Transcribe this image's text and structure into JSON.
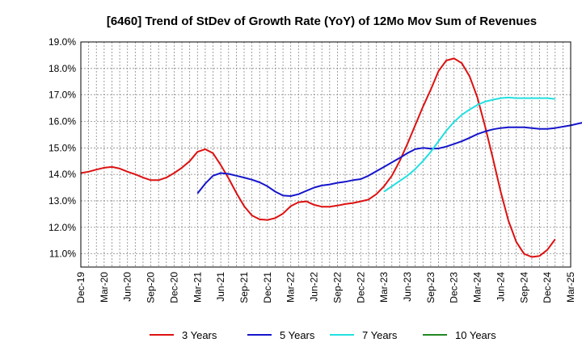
{
  "chart_data": {
    "type": "line",
    "title": "[6460]  Trend of StDev of Growth Rate (YoY) of 12Mo Mov Sum of Revenues",
    "xlabel": "",
    "ylabel": "",
    "ylim": [
      10.5,
      19.0
    ],
    "yticks": [
      11.0,
      12.0,
      13.0,
      14.0,
      15.0,
      16.0,
      17.0,
      18.0,
      19.0
    ],
    "ytick_labels": [
      "11.0%",
      "12.0%",
      "13.0%",
      "14.0%",
      "15.0%",
      "16.0%",
      "17.0%",
      "18.0%",
      "19.0%"
    ],
    "xlim_months": [
      0,
      63
    ],
    "xtick_labels": [
      "Dec-19",
      "Mar-20",
      "Jun-20",
      "Sep-20",
      "Dec-20",
      "Mar-21",
      "Jun-21",
      "Sep-21",
      "Dec-21",
      "Mar-22",
      "Jun-22",
      "Sep-22",
      "Dec-22",
      "Mar-23",
      "Jun-23",
      "Sep-23",
      "Dec-23",
      "Mar-24",
      "Jun-24",
      "Sep-24",
      "Dec-24",
      "Mar-25"
    ],
    "grid": true,
    "legend_position": "bottom",
    "series": [
      {
        "name": "3 Years",
        "color": "#dd1111",
        "start_month": 0,
        "values": [
          14.05,
          14.1,
          14.18,
          14.25,
          14.28,
          14.22,
          14.1,
          14.0,
          13.88,
          13.78,
          13.78,
          13.88,
          14.05,
          14.25,
          14.5,
          14.85,
          14.95,
          14.8,
          14.35,
          13.85,
          13.3,
          12.8,
          12.45,
          12.3,
          12.28,
          12.35,
          12.52,
          12.8,
          12.95,
          12.98,
          12.85,
          12.78,
          12.78,
          12.82,
          12.88,
          12.92,
          12.98,
          13.05,
          13.25,
          13.55,
          13.95,
          14.5,
          15.15,
          15.85,
          16.55,
          17.2,
          17.9,
          18.3,
          18.38,
          18.2,
          17.7,
          16.9,
          15.8,
          14.6,
          13.35,
          12.25,
          11.45,
          11.0,
          10.88,
          10.92,
          11.15,
          11.55
        ]
      },
      {
        "name": "5 Years",
        "color": "#1515cc",
        "start_month": 15,
        "values": [
          13.28,
          13.65,
          13.95,
          14.05,
          14.02,
          13.95,
          13.88,
          13.8,
          13.7,
          13.55,
          13.35,
          13.2,
          13.18,
          13.25,
          13.38,
          13.5,
          13.58,
          13.62,
          13.68,
          13.72,
          13.78,
          13.82,
          13.95,
          14.12,
          14.28,
          14.45,
          14.62,
          14.8,
          14.95,
          15.0,
          14.97,
          14.98,
          15.05,
          15.15,
          15.25,
          15.38,
          15.52,
          15.62,
          15.7,
          15.75,
          15.78,
          15.78,
          15.78,
          15.75,
          15.72,
          15.72,
          15.75,
          15.8,
          15.85,
          15.92,
          15.98
        ]
      },
      {
        "name": "7 Years",
        "color": "#22e0e0",
        "start_month": 39,
        "values": [
          13.35,
          13.55,
          13.75,
          13.95,
          14.2,
          14.5,
          14.85,
          15.25,
          15.65,
          15.98,
          16.25,
          16.45,
          16.62,
          16.75,
          16.82,
          16.88,
          16.9,
          16.88,
          16.88,
          16.88,
          16.88,
          16.88,
          16.85
        ]
      },
      {
        "name": "10 Years",
        "color": "#228822",
        "start_month": 0,
        "values": []
      }
    ]
  }
}
